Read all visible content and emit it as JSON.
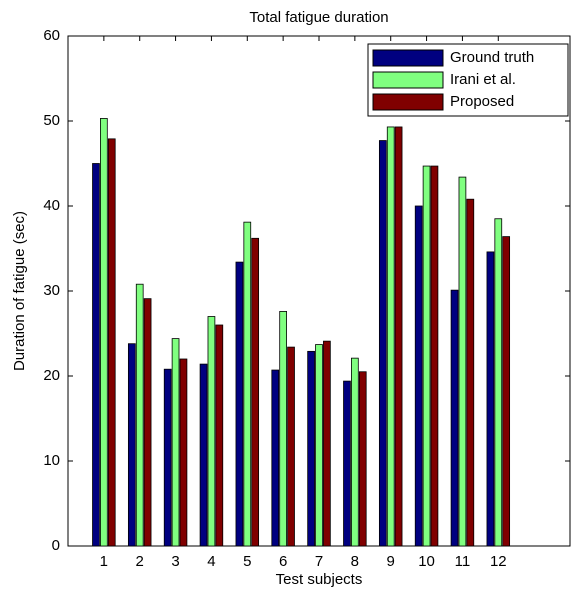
{
  "chart_data": {
    "type": "bar",
    "title": "Total fatigue duration",
    "x_label": "Test subjects",
    "y_label": "Duration of fatigue (sec)",
    "x": [
      1,
      2,
      3,
      4,
      5,
      6,
      7,
      8,
      9,
      10,
      11,
      12
    ],
    "xlim": [
      0,
      14
    ],
    "xticks": [
      1,
      2,
      3,
      4,
      5,
      6,
      7,
      8,
      9,
      10,
      11,
      12
    ],
    "ylim": [
      0,
      60
    ],
    "yticks": [
      0,
      10,
      20,
      30,
      40,
      50,
      60
    ],
    "legend": "top-right",
    "series": [
      {
        "name": "Ground truth",
        "color": "#000080",
        "values": [
          45,
          23.8,
          20.8,
          21.4,
          33.4,
          20.7,
          22.9,
          19.4,
          47.7,
          40,
          30.1,
          34.6
        ]
      },
      {
        "name": "Irani et al.",
        "color": "#80ff80",
        "values": [
          50.3,
          30.8,
          24.4,
          27,
          38.1,
          27.6,
          23.7,
          22.1,
          49.3,
          44.7,
          43.4,
          38.5
        ]
      },
      {
        "name": "Proposed",
        "color": "#800000",
        "values": [
          47.9,
          29.1,
          22,
          26,
          36.2,
          23.4,
          24.1,
          20.5,
          49.3,
          44.7,
          40.8,
          36.4
        ]
      }
    ]
  }
}
